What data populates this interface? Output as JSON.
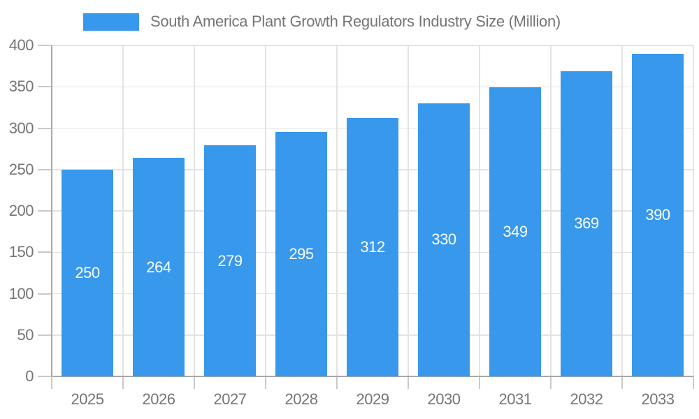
{
  "chart_data": {
    "type": "bar",
    "title": "South America Plant Growth Regulators Industry Size (Million)",
    "categories": [
      "2025",
      "2026",
      "2027",
      "2028",
      "2029",
      "2030",
      "2031",
      "2032",
      "2033"
    ],
    "values": [
      250,
      264,
      279,
      295,
      312,
      330,
      349,
      369,
      390
    ],
    "xlabel": "",
    "ylabel": "",
    "ylim": [
      0,
      400
    ],
    "ytick_step": 50,
    "grid": "on",
    "legend_position": "top-center",
    "value_labels": "inside-middle"
  },
  "colors": {
    "bar": "#3898ec",
    "axis_label": "#757575",
    "gridline": "#e3e3e3",
    "axis_line": "#a8a8a8",
    "tick": "#c9c9c9",
    "value_label": "#ffffff",
    "background": "#ffffff"
  }
}
